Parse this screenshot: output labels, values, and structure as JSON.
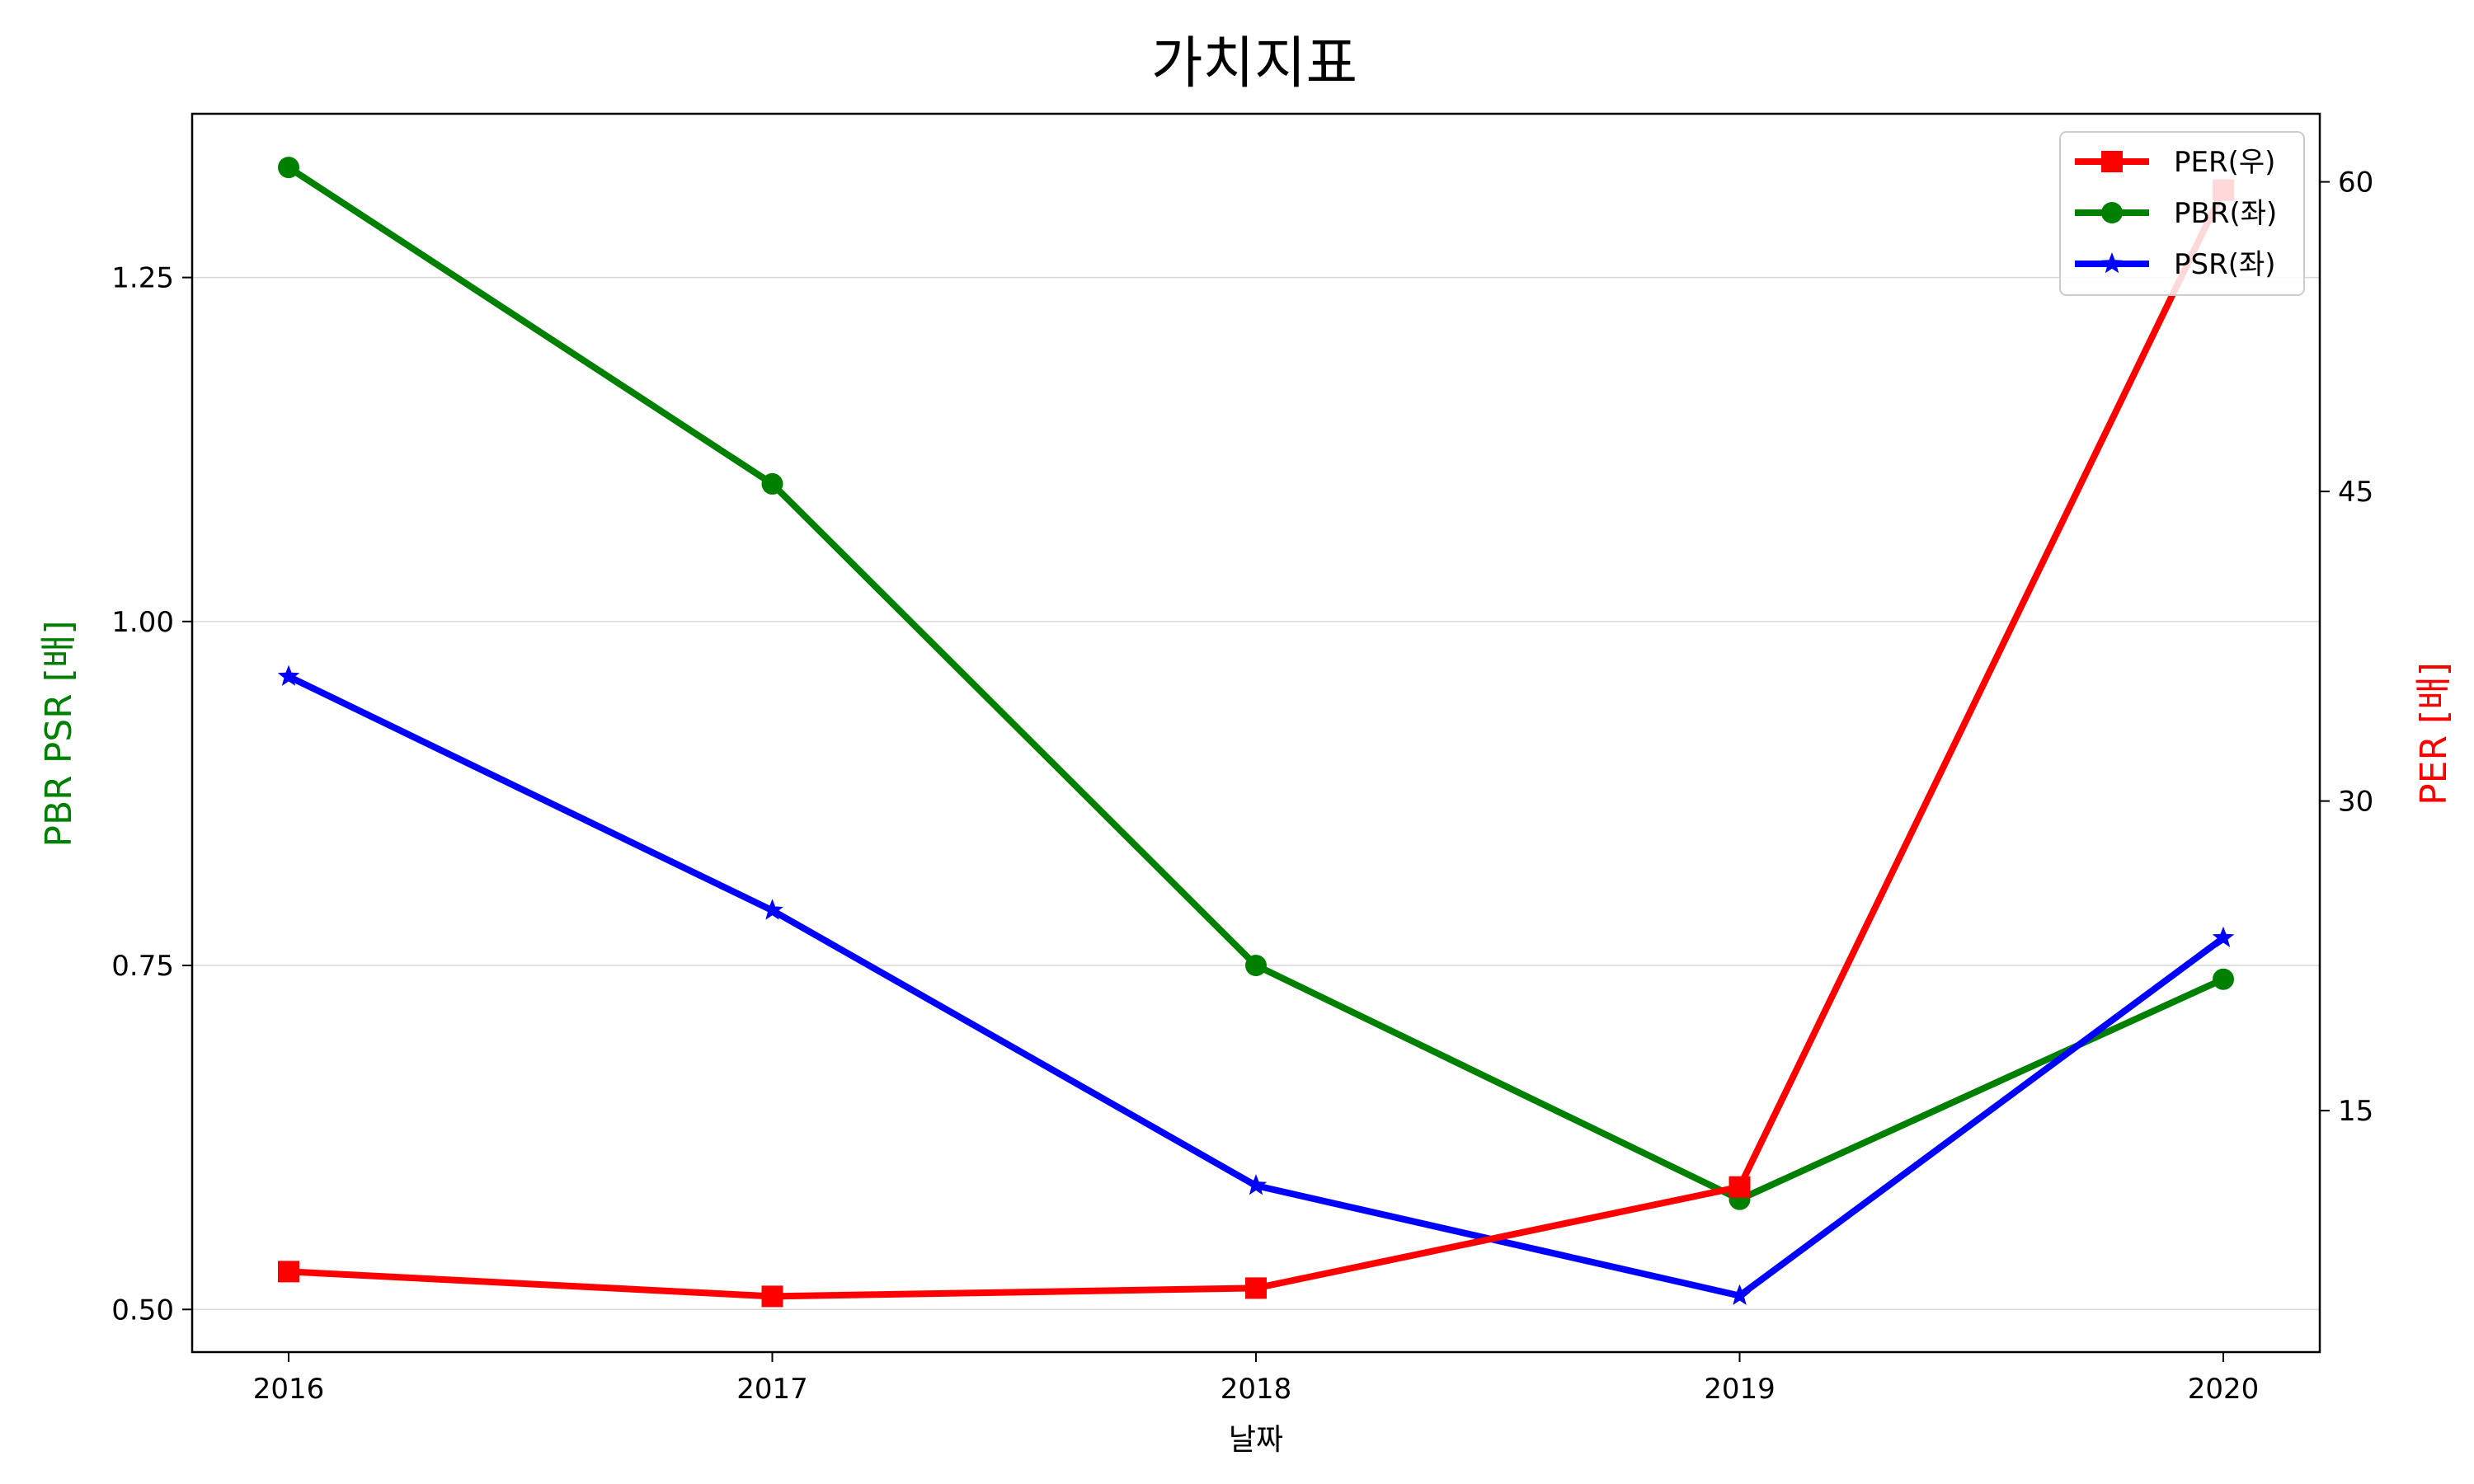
{
  "chart_data": {
    "type": "line",
    "title": "가치지표",
    "xlabel": "날짜",
    "ylabel_left": "PBR PSR [배]",
    "ylabel_right": "PER [배]",
    "ylabel_left_color": "#008000",
    "ylabel_right_color": "#ff0000",
    "x": [
      "2016",
      "2017",
      "2018",
      "2019",
      "2020"
    ],
    "ylim_left": [
      0.469,
      1.369
    ],
    "ylim_right": [
      3.3,
      63.3
    ],
    "yticks_left": [
      "0.50",
      "0.75",
      "1.00",
      "1.25"
    ],
    "yticks_right": [
      "15",
      "30",
      "45",
      "60"
    ],
    "grid": "horizontal",
    "legend_position": "top-right",
    "series": [
      {
        "name": "PER(우)",
        "axis": "right",
        "color": "#ff0000",
        "marker": "square",
        "values": [
          7.2,
          6.0,
          6.4,
          11.3,
          59.6
        ]
      },
      {
        "name": "PBR(좌)",
        "axis": "left",
        "color": "#008000",
        "marker": "circle",
        "values": [
          1.33,
          1.1,
          0.75,
          0.58,
          0.74
        ]
      },
      {
        "name": "PSR(좌)",
        "axis": "left",
        "color": "#0000ff",
        "marker": "star",
        "values": [
          0.96,
          0.79,
          0.59,
          0.51,
          0.77
        ]
      }
    ]
  }
}
